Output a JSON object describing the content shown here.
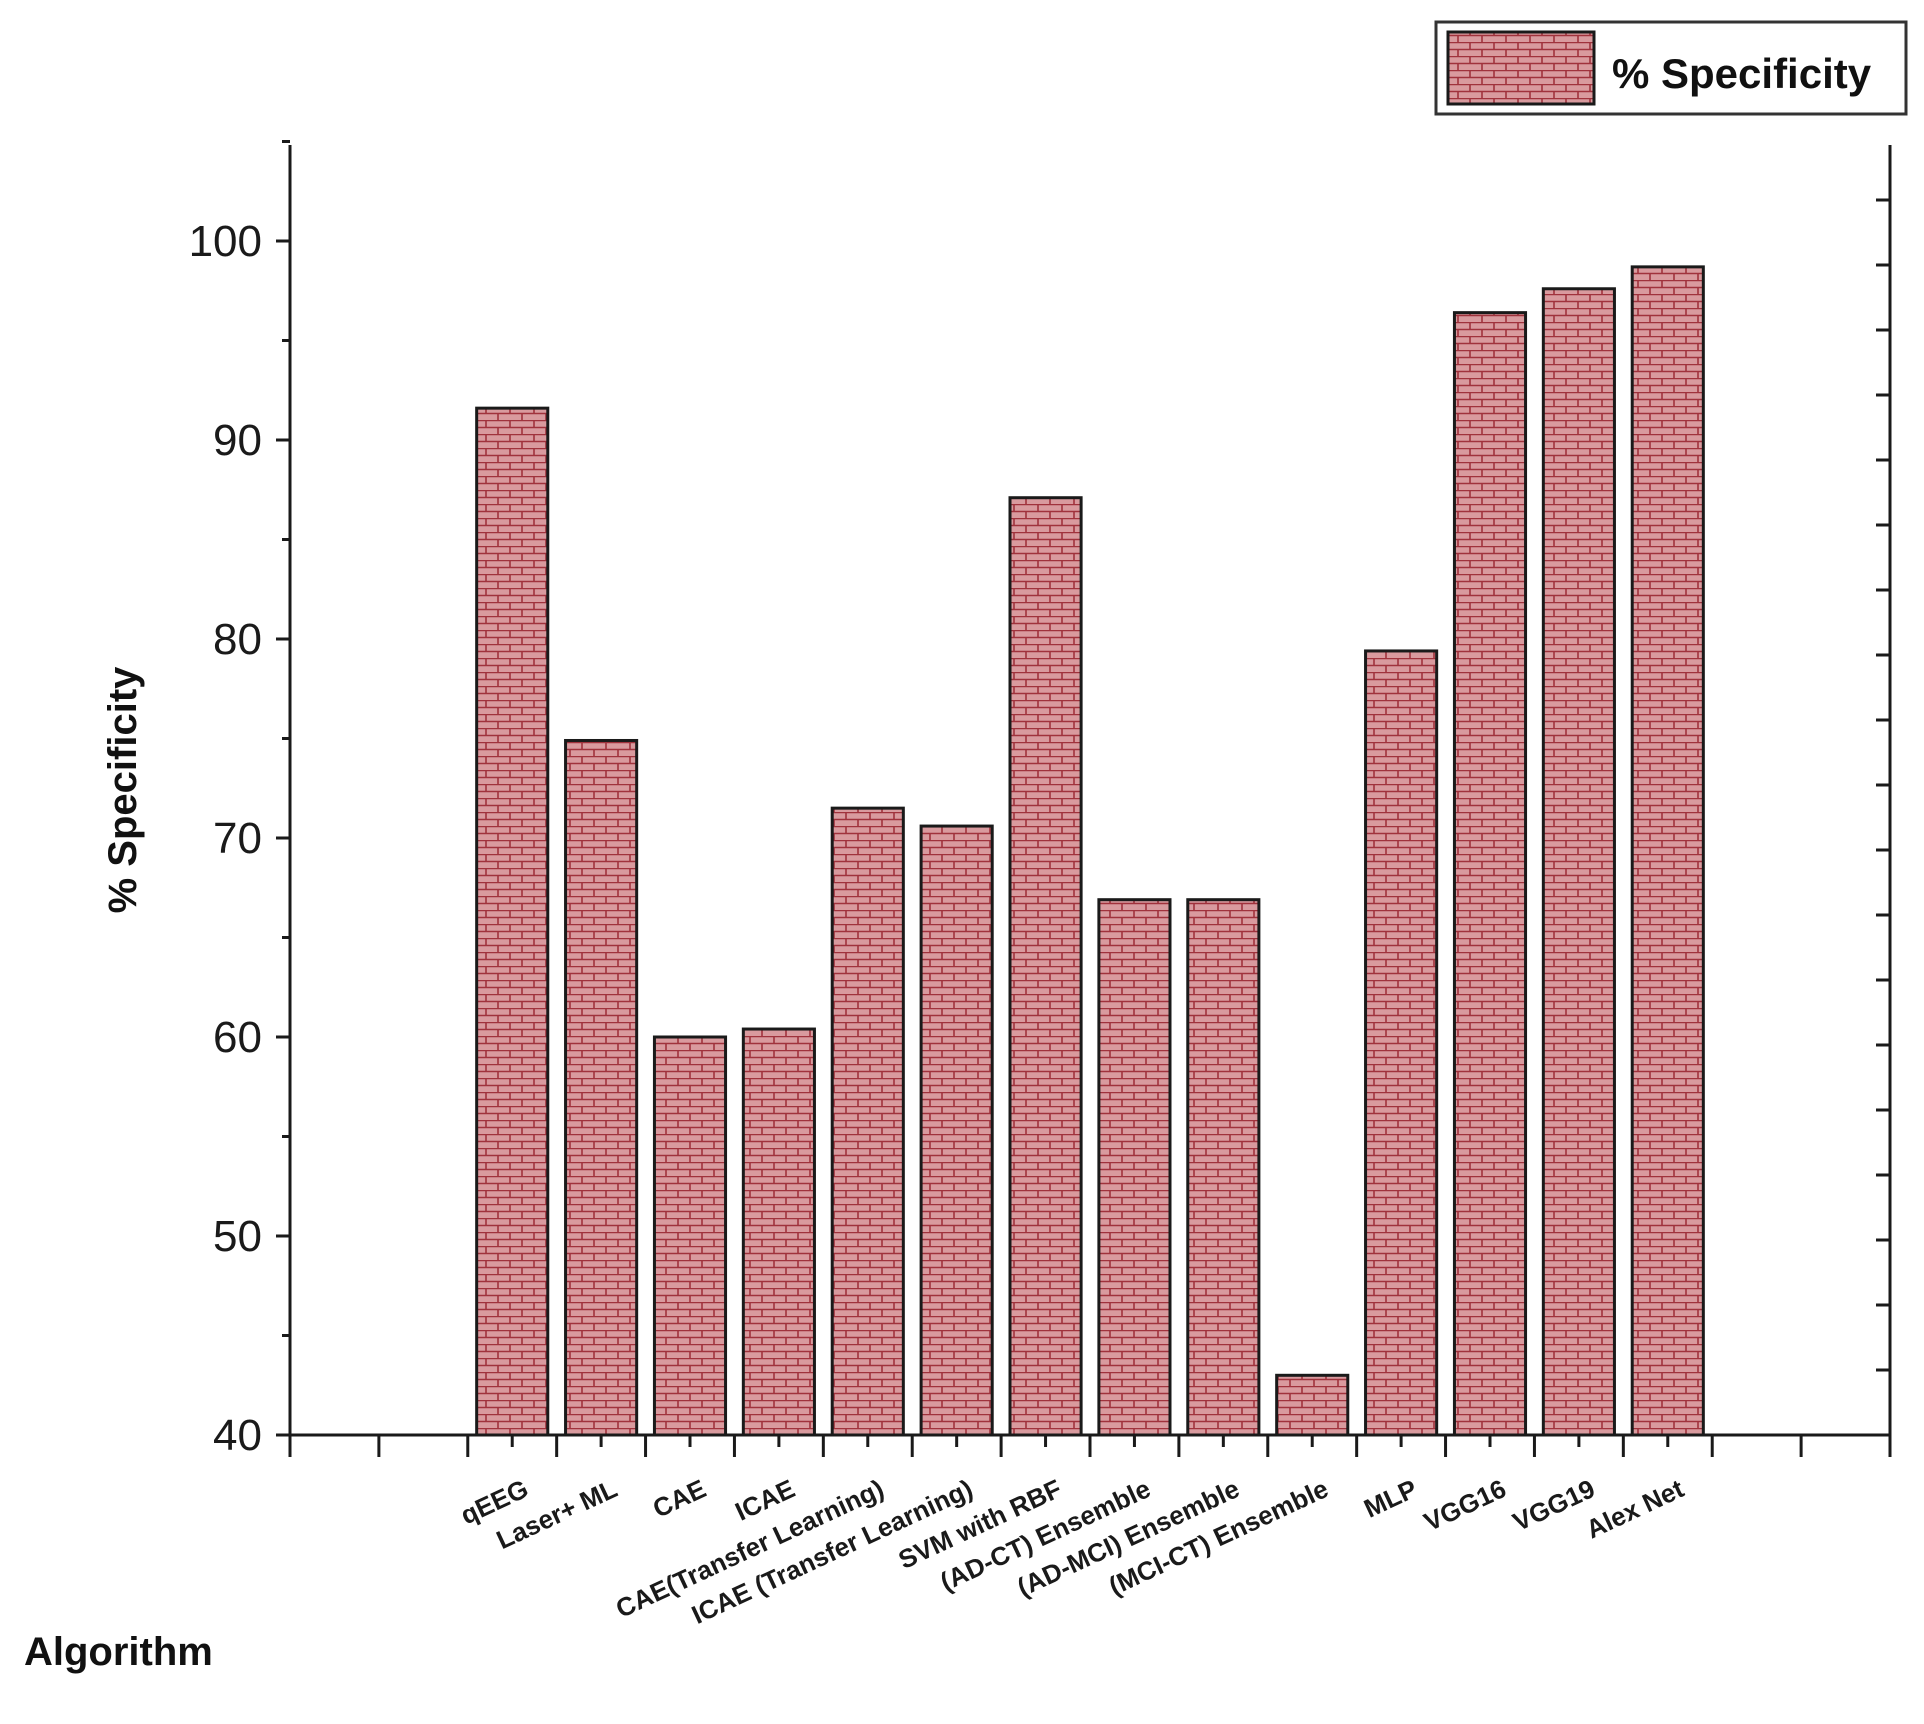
{
  "chart_data": {
    "type": "bar",
    "title": "",
    "xlabel": "Algorithm",
    "ylabel": "% Specificity",
    "ylim": [
      40,
      105
    ],
    "yticks": [
      "40",
      "50",
      "60",
      "70",
      "80",
      "90",
      "100"
    ],
    "legend": {
      "position": "top-right",
      "entries": [
        "% Specificity"
      ]
    },
    "categories": [
      "qEEG",
      "Laser+ ML",
      "CAE",
      "ICAE",
      "CAE(Transfer Learning)",
      "ICAE (Transfer Learning)",
      "SVM with RBF",
      "(AD-CT) Ensemble",
      "(AD-MCI) Ensemble",
      "(MCI-CT)  Ensemble",
      "MLP",
      "VGG16",
      "VGG19",
      "Alex Net"
    ],
    "series": [
      {
        "name": "% Specificity",
        "values": [
          91.6,
          74.9,
          60.0,
          60.4,
          71.5,
          70.6,
          87.1,
          66.9,
          66.9,
          43.0,
          79.4,
          96.4,
          97.6,
          98.7
        ]
      }
    ],
    "colors": {
      "bar_fill": "#d99a9e",
      "bar_brick": "#a0323c",
      "bar_stroke": "#1a1a1a",
      "axis": "#1a1a1a"
    }
  }
}
